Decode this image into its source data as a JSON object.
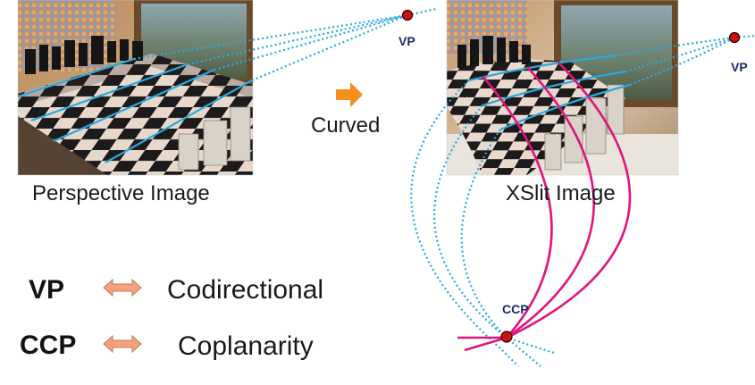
{
  "left_image": {
    "caption": "Perspective Image"
  },
  "right_image": {
    "caption": "XSlit Image"
  },
  "transition": {
    "label": "Curved"
  },
  "points": {
    "vp_left": "VP",
    "vp_right": "VP",
    "ccp": "CCP"
  },
  "legend": [
    {
      "key": "VP",
      "value": "Codirectional"
    },
    {
      "key": "CCP",
      "value": "Coplanarity"
    }
  ],
  "colors": {
    "line_blue": "#29a9e0",
    "line_magenta": "#e0157f",
    "point_fill": "#cc1111",
    "arrow_orange": "#f5901e",
    "double_arrow": "#f0a37e"
  }
}
